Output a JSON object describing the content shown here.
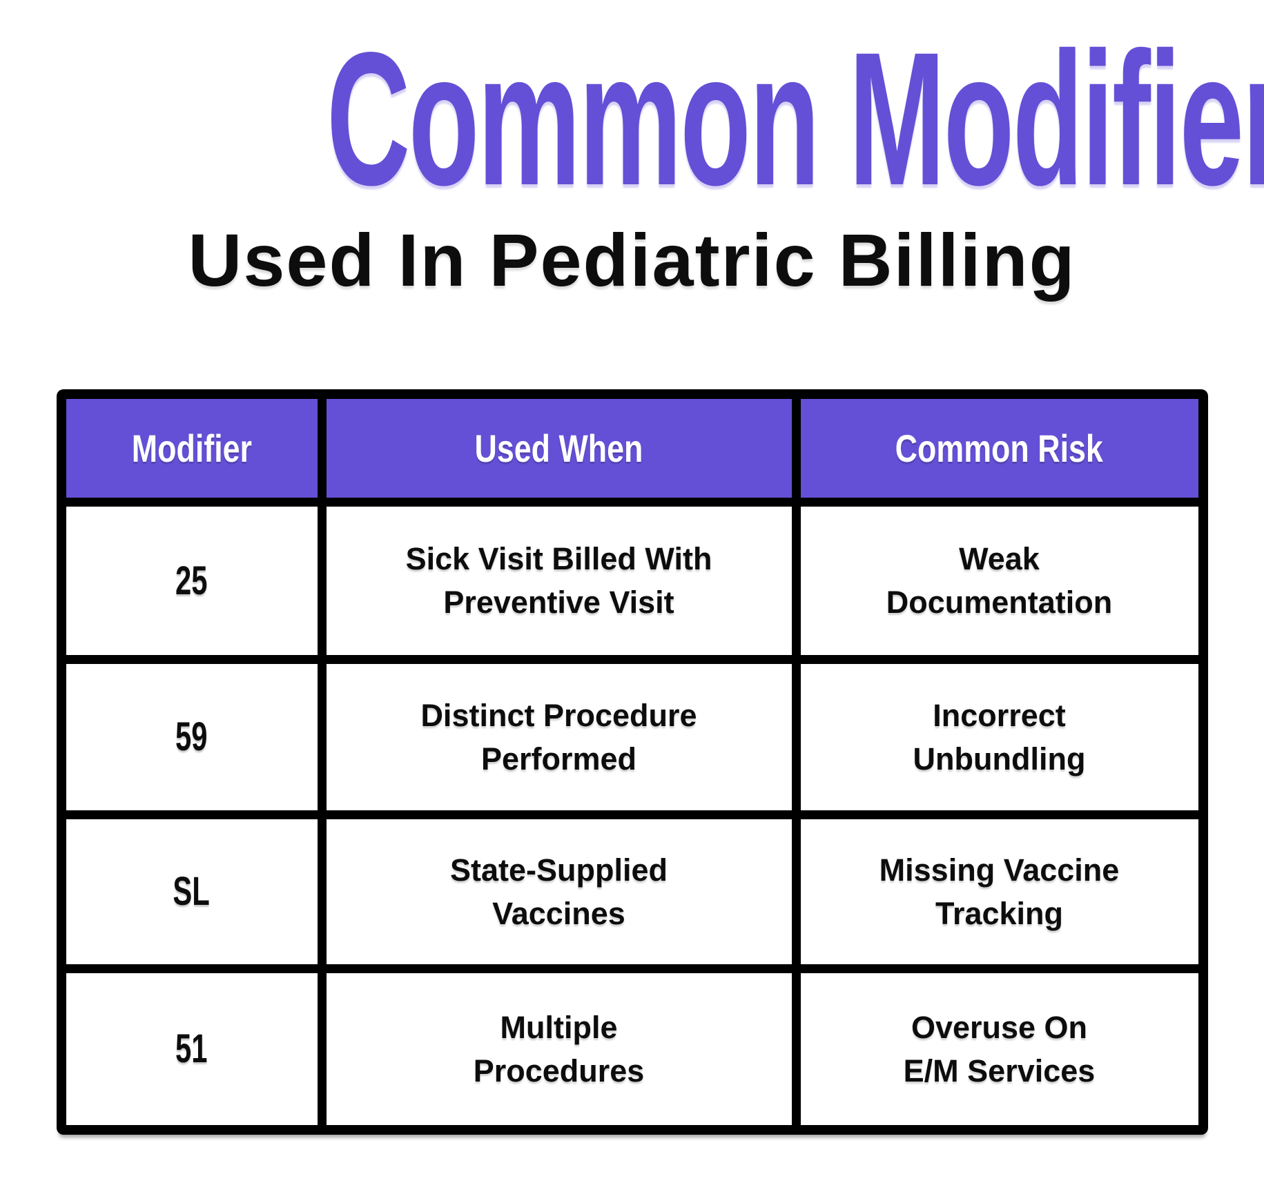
{
  "title": "Common Modifiers",
  "subtitle": "Used In Pediatric Billing",
  "colors": {
    "accent": "#6450D6",
    "header-text": "#FFFFFF",
    "text": "#0D0D0D",
    "table-frame": "#000000",
    "cell-bg": "#FFFFFF",
    "page-bg": "#FFFFFF"
  },
  "chart_data": {
    "type": "table",
    "title": "Common Modifiers",
    "subtitle": "Used In Pediatric Billing",
    "columns": [
      "Modifier",
      "Used When",
      "Common Risk"
    ],
    "rows": [
      [
        "25",
        "Sick Visit Billed With\nPreventive Visit",
        "Weak\nDocumentation"
      ],
      [
        "59",
        "Distinct Procedure\nPerformed",
        "Incorrect\nUnbundling"
      ],
      [
        "SL",
        "State-Supplied\nVaccines",
        "Missing Vaccine\nTracking"
      ],
      [
        "51",
        "Multiple\nProcedures",
        "Overuse On\nE/M Services"
      ]
    ]
  }
}
